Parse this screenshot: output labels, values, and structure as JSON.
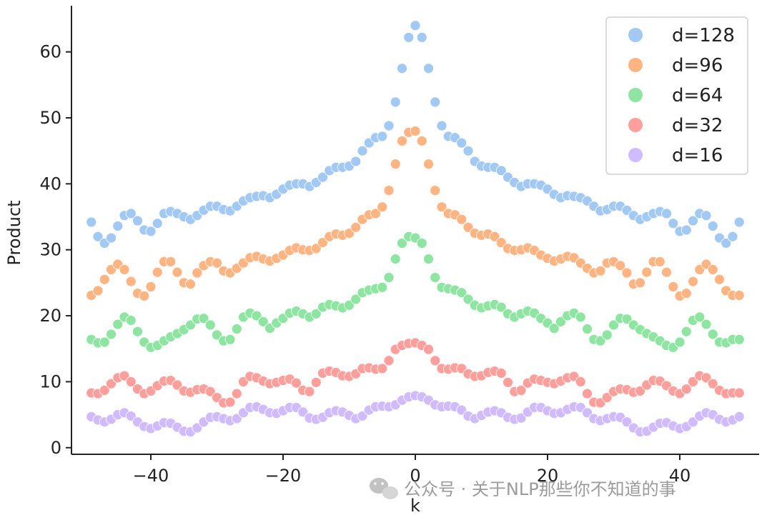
{
  "chart_data": {
    "type": "scatter",
    "title": "",
    "xlabel": "k",
    "ylabel": "Product",
    "xlim": [
      -52,
      52
    ],
    "ylim": [
      -1,
      67
    ],
    "xticks": [
      -40,
      -20,
      0,
      20,
      40
    ],
    "xtick_labels": [
      "−40",
      "−20",
      "0",
      "20",
      "40"
    ],
    "yticks": [
      0,
      10,
      20,
      30,
      40,
      50,
      60
    ],
    "ytick_labels": [
      "0",
      "10",
      "20",
      "30",
      "40",
      "50",
      "60"
    ],
    "grid": false,
    "legend_position": "top-right",
    "x": [
      -49,
      -48,
      -47,
      -46,
      -45,
      -44,
      -43,
      -42,
      -41,
      -40,
      -39,
      -38,
      -37,
      -36,
      -35,
      -34,
      -33,
      -32,
      -31,
      -30,
      -29,
      -28,
      -27,
      -26,
      -25,
      -24,
      -23,
      -22,
      -21,
      -20,
      -19,
      -18,
      -17,
      -16,
      -15,
      -14,
      -13,
      -12,
      -11,
      -10,
      -9,
      -8,
      -7,
      -6,
      -5,
      -4,
      -3,
      -2,
      -1,
      0,
      1,
      2,
      3,
      4,
      5,
      6,
      7,
      8,
      9,
      10,
      11,
      12,
      13,
      14,
      15,
      16,
      17,
      18,
      19,
      20,
      21,
      22,
      23,
      24,
      25,
      26,
      27,
      28,
      29,
      30,
      31,
      32,
      33,
      34,
      35,
      36,
      37,
      38,
      39,
      40,
      41,
      42,
      43,
      44,
      45,
      46,
      47,
      48,
      49
    ],
    "series": [
      {
        "name": "d=128",
        "color": "#a1c9f4",
        "values": [
          34.2,
          32,
          31,
          31.8,
          33.6,
          35.2,
          35.5,
          34.4,
          33,
          32.8,
          34,
          35.5,
          35.8,
          35.5,
          35,
          34.6,
          35.2,
          36,
          36.6,
          36.6,
          36.1,
          35.9,
          36.6,
          37.4,
          37.9,
          38.1,
          38.2,
          37.9,
          38.4,
          39.2,
          39.8,
          40,
          40,
          39.6,
          40.2,
          41,
          42,
          42.5,
          42.5,
          42.7,
          43.4,
          45,
          46.2,
          47,
          47.2,
          48.8,
          52.4,
          57.5,
          62.2,
          64,
          62.2,
          57.5,
          52.4,
          48.8,
          47.2,
          47,
          46.2,
          45,
          43.4,
          42.7,
          42.5,
          42.5,
          42,
          41,
          40.2,
          39.6,
          40,
          40,
          39.8,
          39.2,
          38.4,
          37.9,
          38.2,
          38.1,
          37.9,
          37.4,
          36.6,
          35.9,
          36.1,
          36.6,
          36.6,
          36,
          35.2,
          34.6,
          35,
          35.5,
          35.8,
          35.5,
          34,
          32.8,
          33,
          34.4,
          35.5,
          35.2,
          33.6,
          31.8,
          31,
          32,
          34.2
        ]
      },
      {
        "name": "d=96",
        "color": "#ffb482",
        "values": [
          23.1,
          23.8,
          25.5,
          27,
          27.8,
          27,
          25.2,
          23.4,
          23,
          24.4,
          26.6,
          28.2,
          28.2,
          26.6,
          25,
          24.8,
          26.5,
          27.6,
          28.2,
          28,
          26.8,
          26.5,
          27.2,
          28,
          28.8,
          29,
          28.6,
          28.3,
          28.7,
          29.2,
          29.9,
          30.3,
          30,
          29.9,
          30.2,
          31.1,
          32,
          32.4,
          32.2,
          32.5,
          33.4,
          34.6,
          35.3,
          35.5,
          36.5,
          39,
          43,
          46.5,
          47.8,
          48,
          46.5,
          43,
          39,
          36.5,
          35.5,
          35.3,
          34.6,
          33.4,
          32.5,
          32.2,
          32.4,
          32,
          31.1,
          30.2,
          29.9,
          30,
          30.3,
          29.9,
          29.2,
          28.7,
          28.3,
          28.6,
          29,
          28.8,
          28,
          27.2,
          26.5,
          26.8,
          28,
          28.2,
          27.6,
          26.5,
          24.8,
          25,
          26.6,
          28.2,
          28.2,
          26.6,
          24.4,
          23,
          23.4,
          25.2,
          27,
          27.8,
          27,
          25.5,
          23.8,
          23.1,
          23.1
        ]
      },
      {
        "name": "d=64",
        "color": "#8de5a1",
        "values": [
          16.4,
          15.9,
          16,
          17.2,
          18.7,
          19.8,
          19.3,
          17.6,
          16,
          15.2,
          15.5,
          16.2,
          16.8,
          17.3,
          17.9,
          18.6,
          19.5,
          19.6,
          18.6,
          17.1,
          16.2,
          16.4,
          18,
          19.8,
          20.4,
          20,
          19.1,
          18.1,
          18.9,
          19.6,
          20.4,
          20.7,
          20.3,
          19.8,
          20.3,
          21.3,
          21.7,
          21.5,
          21.2,
          21.6,
          22.5,
          23.5,
          23.9,
          24.1,
          24.3,
          25.8,
          28.6,
          31,
          32,
          31.8,
          31,
          28.6,
          25.8,
          24.3,
          24.1,
          23.9,
          23.5,
          22.5,
          21.6,
          21.2,
          21.5,
          21.7,
          21.3,
          20.3,
          19.8,
          20.3,
          20.7,
          20.4,
          19.6,
          18.9,
          18.1,
          19.1,
          20,
          20.4,
          19.8,
          18,
          16.4,
          16.2,
          17.1,
          18.6,
          19.6,
          19.5,
          18.6,
          17.9,
          17.3,
          16.8,
          16.2,
          15.5,
          15.2,
          16,
          17.6,
          19.3,
          19.8,
          18.7,
          17.2,
          16,
          15.9,
          16.4,
          16.4
        ]
      },
      {
        "name": "d=32",
        "color": "#ff9f9b",
        "values": [
          8.3,
          8.2,
          8.7,
          9.7,
          10.6,
          10.9,
          10,
          8.9,
          8.2,
          8.6,
          9.4,
          10.1,
          10.2,
          9.5,
          8.6,
          8.4,
          8.8,
          8.9,
          8.5,
          7.6,
          6.8,
          6.9,
          8.2,
          10,
          10.8,
          10.6,
          10.1,
          9.7,
          9.9,
          10.2,
          10.4,
          9.8,
          8.7,
          8.5,
          9.9,
          11.3,
          11.6,
          11.4,
          10.9,
          10.8,
          11.2,
          12,
          12.1,
          11.9,
          12,
          13.2,
          14.9,
          15.5,
          15.8,
          15.9,
          15.5,
          14.9,
          13.2,
          12,
          11.9,
          12.1,
          12,
          11.2,
          10.8,
          10.9,
          11.4,
          11.6,
          11.3,
          9.9,
          8.5,
          8.7,
          9.8,
          10.4,
          10.2,
          9.9,
          9.7,
          10.1,
          10.6,
          10.8,
          10,
          8.2,
          6.9,
          6.8,
          7.6,
          8.5,
          8.9,
          8.8,
          8.4,
          8.6,
          9.5,
          10.2,
          10.1,
          9.4,
          8.6,
          8.2,
          8.9,
          10,
          10.9,
          10.6,
          9.7,
          8.7,
          8.2,
          8.3,
          8.3
        ]
      },
      {
        "name": "d=16",
        "color": "#d0bbff",
        "values": [
          4.7,
          4.2,
          3.9,
          4.3,
          5,
          5.3,
          4.8,
          3.9,
          3.2,
          2.9,
          3.3,
          3.8,
          3.7,
          3.1,
          2.5,
          2.4,
          3,
          3.9,
          4.6,
          4.7,
          4.4,
          4.1,
          4.4,
          5.3,
          6.1,
          6.2,
          5.8,
          5.3,
          5.2,
          5.6,
          6.1,
          6.1,
          5.4,
          4.5,
          4.3,
          4.6,
          5.3,
          5.6,
          5.4,
          4.9,
          4.4,
          4.8,
          5.7,
          6.2,
          6.3,
          6.2,
          6.5,
          7.2,
          7.7,
          7.9,
          7.7,
          7.2,
          6.5,
          6.2,
          6.3,
          6.2,
          5.7,
          4.8,
          4.4,
          4.9,
          5.4,
          5.6,
          5.3,
          4.6,
          4.3,
          4.5,
          5.4,
          6.1,
          6.1,
          5.6,
          5.2,
          5.3,
          5.8,
          6.2,
          6.1,
          5.3,
          4.4,
          4.1,
          4.4,
          4.7,
          4.6,
          3.9,
          3,
          2.4,
          2.5,
          3.1,
          3.7,
          3.8,
          3.3,
          2.9,
          3.2,
          3.9,
          4.8,
          5.3,
          5,
          4.3,
          3.9,
          4.2,
          4.7
        ]
      }
    ]
  },
  "watermark": {
    "text": "公众号 · 关于NLP那些你不知道的事",
    "icon": "wechat-icon"
  }
}
